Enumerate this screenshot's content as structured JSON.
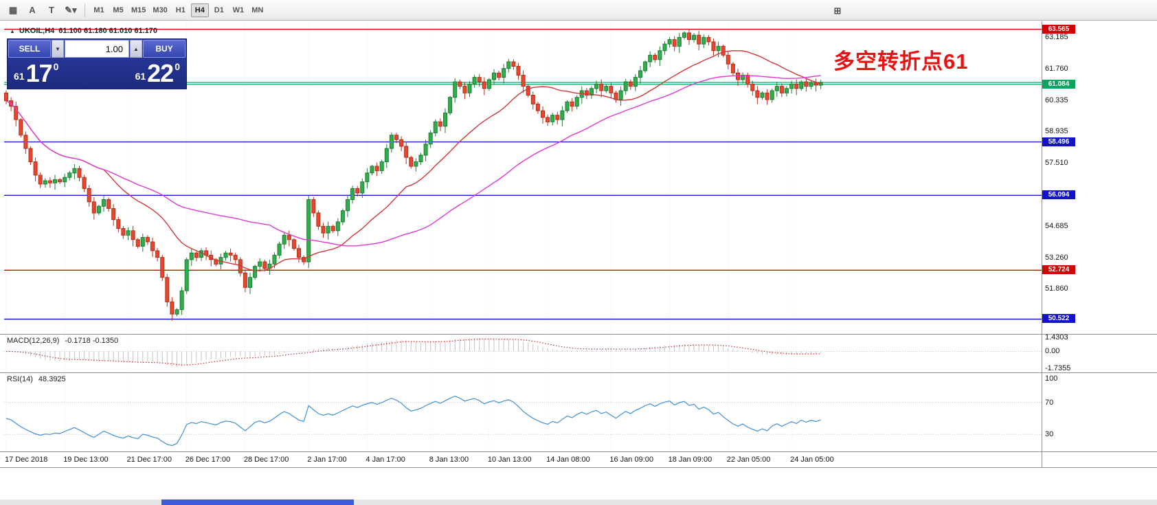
{
  "toolbar": {
    "left_icons": [
      {
        "name": "chart-grid-icon",
        "glyph": "▦"
      },
      {
        "name": "text-label-icon",
        "glyph": "A"
      },
      {
        "name": "text-box-icon",
        "glyph": "T"
      },
      {
        "name": "draw-tools-icon",
        "glyph": "✎▾"
      }
    ],
    "timeframes": [
      "M1",
      "M5",
      "M15",
      "M30",
      "H1",
      "H4",
      "D1",
      "W1",
      "MN"
    ],
    "active_timeframe": "H4",
    "right_icon": {
      "name": "new-window-icon",
      "glyph": "⊞"
    }
  },
  "chart_header": {
    "trend_icon": "▲",
    "symbol": "UKOIL,H4",
    "ohlc": "61.100 61.180 61.010 61.170"
  },
  "trade_panel": {
    "sell_label": "SELL",
    "buy_label": "BUY",
    "volume": "1.00",
    "spin_down_glyph": "▼",
    "spin_up_glyph": "▲",
    "sell_price": {
      "big_left": "61",
      "big": "17",
      "sup": "0"
    },
    "buy_price": {
      "big_left": "61",
      "big": "22",
      "sup": "0"
    }
  },
  "annotation": {
    "text": "多空转折点61",
    "color": "#e81212"
  },
  "chart_data": {
    "type": "candlestick",
    "symbol": "UKOIL",
    "timeframe": "H4",
    "price_range": {
      "min": 49.95,
      "max": 63.8
    },
    "first_open": 60.7,
    "closes": [
      60.35,
      60.1,
      59.5,
      58.8,
      58.2,
      57.6,
      57.0,
      56.6,
      56.75,
      56.65,
      56.8,
      56.7,
      56.9,
      57.1,
      57.3,
      56.9,
      56.4,
      55.8,
      55.3,
      55.6,
      55.9,
      55.5,
      55.0,
      54.6,
      54.3,
      54.5,
      54.1,
      53.8,
      54.2,
      54.0,
      53.6,
      53.3,
      52.4,
      51.3,
      50.75,
      50.95,
      51.8,
      53.2,
      53.5,
      53.3,
      53.6,
      53.4,
      53.2,
      53.0,
      53.3,
      53.5,
      53.4,
      53.2,
      52.6,
      51.95,
      52.4,
      52.9,
      53.1,
      52.8,
      53.0,
      53.4,
      53.9,
      54.3,
      54.1,
      53.7,
      53.3,
      53.1,
      55.9,
      55.3,
      54.7,
      54.4,
      54.7,
      54.5,
      54.9,
      55.4,
      55.9,
      56.4,
      56.2,
      56.7,
      57.1,
      57.4,
      57.2,
      57.6,
      58.2,
      58.8,
      58.6,
      58.3,
      57.8,
      57.4,
      57.6,
      57.9,
      58.4,
      58.9,
      59.4,
      59.2,
      59.8,
      60.5,
      61.2,
      61.0,
      60.7,
      61.1,
      61.4,
      61.2,
      60.9,
      61.3,
      61.6,
      61.4,
      61.8,
      62.1,
      61.9,
      61.5,
      61.0,
      60.6,
      60.2,
      59.9,
      59.6,
      59.4,
      59.7,
      59.5,
      59.9,
      60.3,
      60.1,
      60.5,
      60.8,
      60.6,
      60.9,
      61.1,
      60.8,
      61.0,
      60.7,
      60.4,
      60.8,
      61.2,
      61.0,
      61.4,
      61.7,
      62.1,
      62.4,
      62.2,
      62.6,
      62.9,
      63.1,
      62.8,
      63.2,
      63.4,
      63.1,
      63.3,
      62.9,
      63.2,
      63.0,
      62.6,
      62.8,
      62.4,
      62.0,
      61.6,
      61.3,
      61.5,
      61.1,
      60.8,
      60.5,
      60.7,
      60.4,
      60.8,
      61.0,
      60.7,
      60.9,
      61.1,
      60.9,
      61.2,
      61.0,
      61.15,
      61.05,
      61.17
    ],
    "wick_pattern": [
      0.16,
      0.22,
      0.3,
      0.1,
      0.24,
      0.14,
      0.28,
      0.18
    ],
    "up_color": "#2fae4b",
    "up_border": "#1b7d31",
    "down_color": "#e8472e",
    "down_border": "#b12f1c",
    "moving_averages": [
      {
        "name": "ma-fast",
        "period": 21,
        "color": "#d23535"
      },
      {
        "name": "ma-slow",
        "period": 55,
        "color": "#e038d2"
      }
    ],
    "hlines": [
      {
        "price": 63.565,
        "color": "#d40000",
        "tag": true,
        "tag_bg": "#d40000"
      },
      {
        "price": 61.175,
        "color": "#17b878",
        "tag": false,
        "tag_bg": "#0ca05e"
      },
      {
        "price": 61.084,
        "color": "#17b878",
        "tag": true,
        "tag_bg": "#0aa45f"
      },
      {
        "price": 58.496,
        "color": "#1a1ad0",
        "tag": true,
        "tag_bg": "#1212c8"
      },
      {
        "price": 56.094,
        "color": "#1a1ad0",
        "tag": true,
        "tag_bg": "#1212c8"
      },
      {
        "price": 52.724,
        "color": "#d40000",
        "tag": true,
        "tag_bg": "#d40000"
      },
      {
        "price": 50.522,
        "color": "#1a1ad0",
        "tag": true,
        "tag_bg": "#1212c8"
      }
    ],
    "y_axis_labels": [
      63.185,
      61.76,
      60.335,
      58.935,
      57.51,
      54.685,
      53.26,
      51.86
    ],
    "x_axis_labels": [
      {
        "text": "17 Dec 2018",
        "index": 0
      },
      {
        "text": "19 Dec 13:00",
        "index": 12
      },
      {
        "text": "21 Dec 17:00",
        "index": 25
      },
      {
        "text": "26 Dec 17:00",
        "index": 37
      },
      {
        "text": "28 Dec 17:00",
        "index": 49
      },
      {
        "text": "2 Jan 17:00",
        "index": 62
      },
      {
        "text": "4 Jan 17:00",
        "index": 74
      },
      {
        "text": "8 Jan 13:00",
        "index": 87
      },
      {
        "text": "10 Jan 13:00",
        "index": 99
      },
      {
        "text": "14 Jan 08:00",
        "index": 111
      },
      {
        "text": "16 Jan 09:00",
        "index": 124
      },
      {
        "text": "18 Jan 09:00",
        "index": 136
      },
      {
        "text": "22 Jan 05:00",
        "index": 148
      },
      {
        "text": "24 Jan 05:00",
        "index": 161
      }
    ],
    "indicators": {
      "macd": {
        "label": "MACD(12,26,9)",
        "values": "-0.1718 -0.1350",
        "fast": 12,
        "slow": 26,
        "signal": 9,
        "scale": [
          {
            "value": 1.4303,
            "text": "1.4303"
          },
          {
            "value": 0,
            "text": "0.00"
          },
          {
            "value": -1.7355,
            "text": "-1.7355"
          }
        ],
        "signal_color": "#d42a2a",
        "histogram_color": "#c4c4c4"
      },
      "rsi": {
        "label": "RSI(14)",
        "value": "48.3925",
        "period": 14,
        "levels": [
          70,
          30
        ],
        "scale": [
          {
            "value": 100,
            "text": "100"
          },
          {
            "value": 70,
            "text": "70"
          },
          {
            "value": 30,
            "text": "30"
          }
        ],
        "line_color": "#3f8fd8",
        "level_color": "#bdbdbd"
      }
    }
  }
}
